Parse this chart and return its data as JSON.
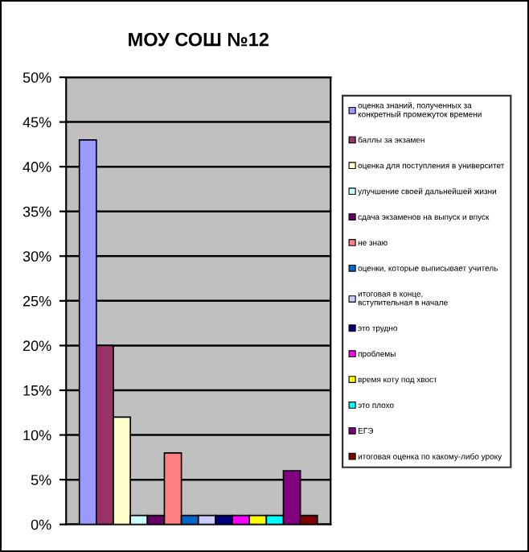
{
  "chart_data": {
    "type": "bar",
    "title": "МОУ СОШ №12",
    "categories": [
      null
    ],
    "series": [
      {
        "name": "оценка знаний, полученных за конкретный промежуток времени",
        "color": "#9999ff",
        "values": [
          43
        ]
      },
      {
        "name": "баллы за экзамен",
        "color": "#993366",
        "values": [
          20
        ]
      },
      {
        "name": "оценка для поступления в университет",
        "color": "#ffffcc",
        "values": [
          12
        ]
      },
      {
        "name": "улучшение своей дальнейшей жизни",
        "color": "#ccffff",
        "values": [
          1
        ]
      },
      {
        "name": "сдача экзаменов на выпуск и впуск",
        "color": "#660066",
        "values": [
          1
        ]
      },
      {
        "name": "не знаю",
        "color": "#ff8080",
        "values": [
          8
        ]
      },
      {
        "name": "оценки, которые выписывает учитель",
        "color": "#0066cc",
        "values": [
          1
        ]
      },
      {
        "name": "итоговая в конце, вступительная в начале",
        "color": "#ccccff",
        "values": [
          1
        ]
      },
      {
        "name": "это трудно",
        "color": "#000080",
        "values": [
          1
        ]
      },
      {
        "name": "проблемы",
        "color": "#ff00ff",
        "values": [
          1
        ]
      },
      {
        "name": "время коту под хвост",
        "color": "#ffff00",
        "values": [
          1
        ]
      },
      {
        "name": "это плохо",
        "color": "#00ffff",
        "values": [
          1
        ]
      },
      {
        "name": "ЕГЭ",
        "color": "#800080",
        "values": [
          6
        ]
      },
      {
        "name": "итоговая оценка по какому-либо уроку",
        "color": "#800000",
        "values": [
          1
        ]
      }
    ],
    "ylim": [
      0,
      50
    ],
    "yticks": [
      {
        "value": 0,
        "label": "0%"
      },
      {
        "value": 5,
        "label": "5%"
      },
      {
        "value": 10,
        "label": "10%"
      },
      {
        "value": 15,
        "label": "15%"
      },
      {
        "value": 20,
        "label": "20%"
      },
      {
        "value": 25,
        "label": "25%"
      },
      {
        "value": 30,
        "label": "30%"
      },
      {
        "value": 35,
        "label": "35%"
      },
      {
        "value": 40,
        "label": "40%"
      },
      {
        "value": 45,
        "label": "45%"
      },
      {
        "value": 50,
        "label": "50%"
      }
    ],
    "grid": "y",
    "legend": "right"
  }
}
